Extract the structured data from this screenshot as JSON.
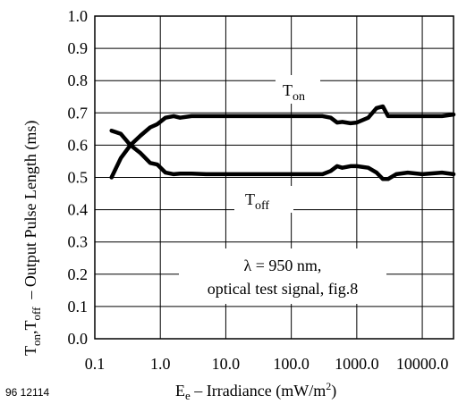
{
  "figure_id": "96 12114",
  "chart_data": {
    "type": "line",
    "xscale": "log",
    "xlim": [
      0.1,
      30000
    ],
    "ylim": [
      0.0,
      1.0
    ],
    "grid": true,
    "y_ticks": [
      "0.0",
      "0.1",
      "0.2",
      "0.3",
      "0.4",
      "0.5",
      "0.6",
      "0.7",
      "0.8",
      "0.9",
      "1.0"
    ],
    "x_ticks": [
      {
        "value": 0.1,
        "label": "0.1"
      },
      {
        "value": 1,
        "label": "1.0"
      },
      {
        "value": 10,
        "label": "10.0"
      },
      {
        "value": 100,
        "label": "100.0"
      },
      {
        "value": 1000,
        "label": "1000.0"
      },
      {
        "value": 10000,
        "label": "10000.0"
      }
    ],
    "xlabel": {
      "main": "E",
      "sub_e": "e",
      "mid": " – Irradiance (mW/m",
      "sup": "2",
      "end": ")"
    },
    "ylabel": {
      "t1": "T",
      "s1": "on",
      "comma": ",T",
      "s2": "off",
      "rest": "  – Output Pulse Length (ms)"
    },
    "annotations": {
      "ton": {
        "base": "T",
        "sub": "on"
      },
      "toff": {
        "base": "T",
        "sub": "off"
      },
      "note_line1": "λ = 950 nm,",
      "note_line2": "optical test signal, fig.8"
    },
    "series": [
      {
        "key": "ton",
        "x": [
          0.18,
          0.25,
          0.35,
          0.5,
          0.7,
          0.9,
          1.2,
          1.6,
          2,
          3,
          5,
          10,
          20,
          50,
          100,
          200,
          300,
          400,
          500,
          600,
          800,
          1000,
          1500,
          2000,
          2500,
          3000,
          4000,
          6000,
          10000,
          20000,
          30000
        ],
        "y": [
          0.5,
          0.56,
          0.6,
          0.63,
          0.655,
          0.665,
          0.685,
          0.69,
          0.685,
          0.69,
          0.69,
          0.69,
          0.69,
          0.69,
          0.69,
          0.69,
          0.69,
          0.685,
          0.67,
          0.672,
          0.668,
          0.67,
          0.685,
          0.715,
          0.72,
          0.69,
          0.69,
          0.69,
          0.69,
          0.69,
          0.695
        ]
      },
      {
        "key": "toff",
        "x": [
          0.18,
          0.25,
          0.35,
          0.5,
          0.7,
          0.9,
          1.2,
          1.6,
          2,
          3,
          5,
          10,
          20,
          50,
          100,
          200,
          300,
          400,
          500,
          600,
          800,
          1000,
          1500,
          2000,
          2500,
          3000,
          4000,
          6000,
          10000,
          20000,
          30000
        ],
        "y": [
          0.645,
          0.635,
          0.6,
          0.575,
          0.545,
          0.54,
          0.515,
          0.51,
          0.512,
          0.512,
          0.51,
          0.51,
          0.51,
          0.51,
          0.51,
          0.51,
          0.51,
          0.52,
          0.535,
          0.53,
          0.535,
          0.535,
          0.53,
          0.515,
          0.495,
          0.495,
          0.51,
          0.515,
          0.51,
          0.515,
          0.51
        ]
      }
    ]
  }
}
